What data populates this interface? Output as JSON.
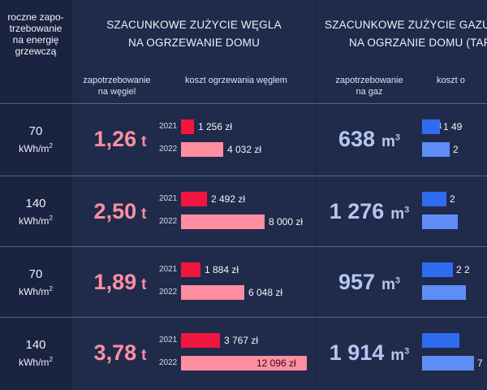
{
  "header": {
    "left_lines": [
      "roczne zapo-",
      "trzebowanie",
      "na energię",
      "grzewczą"
    ],
    "coal_title_lines": [
      "SZACUNKOWE ZUŻYCIE WĘGLA",
      "NA OGRZEWANIE DOMU"
    ],
    "gas_title_lines": [
      "SZACUNKOWE ZUŻYCIE GAZU",
      "NA OGRZANIE DOMU (TARY"
    ],
    "coal_sub1_lines": [
      "zapotrzebowanie",
      "na węgiel"
    ],
    "coal_sub2": "koszt ogrzewania węglem",
    "gas_sub1_lines": [
      "zapotrzebowanie",
      "na gaz"
    ],
    "gas_sub2": "koszt o"
  },
  "colors": {
    "coal_2021": "#f0163e",
    "coal_2022": "#ff8ea0",
    "gas_2021": "#2f6cf0",
    "gas_2022": "#5e8ef5"
  },
  "years": [
    "2021",
    "2022"
  ],
  "chart_data": {
    "type": "bar",
    "units": {
      "energy": "kWh/m2",
      "coal": "t",
      "gas": "m³",
      "cost": "zł"
    },
    "rows": [
      {
        "energy": "70",
        "energy_unit": "kWh/m2",
        "coal_t": "1,26 t",
        "coal_t_num": "1,26",
        "coal_unit": "t",
        "coal_cost_2021": 1256,
        "coal_cost_2022": 4032,
        "coal_cost_2021_label": "1 256 zł",
        "coal_cost_2022_label": "4 032 zł",
        "gas_m3_num": "638",
        "gas_cost_2021_label": "1 49",
        "gas_cost_2022_label": "2"
      },
      {
        "energy": "140",
        "energy_unit": "kWh/m2",
        "coal_t_num": "2,50",
        "coal_unit": "t",
        "coal_cost_2021": 2492,
        "coal_cost_2022": 8000,
        "coal_cost_2021_label": "2 492 zł",
        "coal_cost_2022_label": "8 000 zł",
        "gas_m3_num": "1 276",
        "gas_cost_2021_label": "2",
        "gas_cost_2022_label": ""
      },
      {
        "energy": "70",
        "energy_unit": "kWh/m2",
        "coal_t_num": "1,89",
        "coal_unit": "t",
        "coal_cost_2021": 1884,
        "coal_cost_2022": 6048,
        "coal_cost_2021_label": "1 884 zł",
        "coal_cost_2022_label": "6 048 zł",
        "gas_m3_num": "957",
        "gas_cost_2021_label": "2 2",
        "gas_cost_2022_label": ""
      },
      {
        "energy": "140",
        "energy_unit": "kWh/m2",
        "coal_t_num": "3,78",
        "coal_unit": "t",
        "coal_cost_2021": 3767,
        "coal_cost_2022": 12096,
        "coal_cost_2021_label": "3 767 zł",
        "coal_cost_2022_label": "12 096 zł",
        "gas_m3_num": "1 914",
        "gas_cost_2021_label": "",
        "gas_cost_2022_label": "7"
      }
    ]
  }
}
